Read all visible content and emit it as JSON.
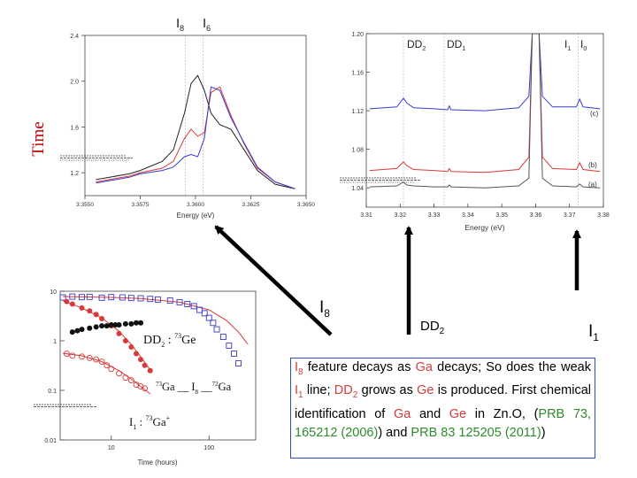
{
  "side_label": "Time",
  "callouts": {
    "i8": {
      "base": "I",
      "sub": "8"
    },
    "dd2": {
      "base": "DD",
      "sub": "2"
    },
    "i1": {
      "base": "I",
      "sub": "1"
    }
  },
  "caption": {
    "p1": "I",
    "p1_sub": "8",
    "p2": " feature decays as ",
    "p3": "Ga",
    "p4": " decays; So does the weak ",
    "p5": "I",
    "p5_sub": "1",
    "p6": " line; ",
    "p7": "DD",
    "p7_sub": "2",
    "p8": " grows as ",
    "p9": "Ge",
    "p10": " is produced. First chemical identification of ",
    "p11": "Ga",
    "p12": " and ",
    "p13": "Ge",
    "p14": " in Zn.O, (",
    "p15": "PRB 73, 165212 (2006)",
    "p16": ") and ",
    "p17": "PRB 83 125205 (2011)",
    "p18": ")"
  },
  "colors": {
    "red": "#d83a3a",
    "green": "#2e8b2e",
    "blue": "#3a3ad0",
    "arrow": "#000000"
  },
  "chart_data": [
    {
      "type": "line",
      "title": "",
      "xlabel": "Energy (eV)",
      "ylabel": "",
      "xlim": [
        3.355,
        3.365
      ],
      "ylim": [
        1.0,
        2.4
      ],
      "xticks": [
        "3.3550",
        "3.3575",
        "3.3600",
        "3.3625",
        "3.3650"
      ],
      "yticks": [
        "1.2",
        "1.6",
        "2.0",
        "2.4"
      ],
      "top_labels": [
        {
          "base": "I",
          "sub": "8"
        },
        {
          "base": "I",
          "sub": "6"
        }
      ],
      "series": [
        {
          "color": "#222222",
          "x": [
            3.3555,
            3.357,
            3.3575,
            3.3585,
            3.359,
            3.3595,
            3.3598,
            3.3601,
            3.3604,
            3.3607,
            3.3611,
            3.3616,
            3.3622,
            3.3628,
            3.3636,
            3.3645
          ],
          "y": [
            1.14,
            1.19,
            1.22,
            1.3,
            1.4,
            1.72,
            1.98,
            2.05,
            1.92,
            1.72,
            1.62,
            1.58,
            1.4,
            1.22,
            1.1,
            1.06
          ]
        },
        {
          "color": "#d83a3a",
          "x": [
            3.3555,
            3.357,
            3.3575,
            3.3585,
            3.359,
            3.3595,
            3.3598,
            3.3601,
            3.3604,
            3.3607,
            3.3611,
            3.3616,
            3.3622,
            3.3628,
            3.3636,
            3.3645
          ],
          "y": [
            1.12,
            1.17,
            1.2,
            1.24,
            1.3,
            1.5,
            1.58,
            1.52,
            1.55,
            1.9,
            1.95,
            1.7,
            1.45,
            1.24,
            1.12,
            1.06
          ]
        },
        {
          "color": "#3a3ad0",
          "x": [
            3.3555,
            3.357,
            3.3575,
            3.3585,
            3.359,
            3.3595,
            3.3598,
            3.3601,
            3.3604,
            3.3607,
            3.3611,
            3.3616,
            3.3622,
            3.3628,
            3.3636,
            3.3645
          ],
          "y": [
            1.11,
            1.16,
            1.19,
            1.22,
            1.25,
            1.34,
            1.36,
            1.34,
            1.5,
            1.95,
            1.92,
            1.68,
            1.46,
            1.25,
            1.12,
            1.06
          ]
        }
      ]
    },
    {
      "type": "line",
      "title": "",
      "xlabel": "Energy (eV)",
      "ylabel": "",
      "xlim": [
        3.31,
        3.38
      ],
      "ylim": [
        1.02,
        1.2
      ],
      "xticks": [
        "3.31",
        "3.32",
        "3.33",
        "3.34",
        "3.35",
        "3.36",
        "3.37",
        "3.38"
      ],
      "yticks": [
        "1.04",
        "1.08",
        "1.12",
        "1.16",
        "1.20"
      ],
      "top_labels": [
        {
          "base": "DD",
          "sub": "2"
        },
        {
          "base": "DD",
          "sub": "1"
        },
        {
          "base": "I",
          "sub": "1"
        },
        {
          "base": "I",
          "sub": "0"
        }
      ],
      "trace_labels": [
        "(c)",
        "(b)",
        "(a)"
      ],
      "series": [
        {
          "color": "#3a3ad0",
          "x": [
            3.311,
            3.319,
            3.321,
            3.322,
            3.324,
            3.33,
            3.334,
            3.3345,
            3.335,
            3.345,
            3.355,
            3.358,
            3.359,
            3.361,
            3.362,
            3.365,
            3.372,
            3.373,
            3.374,
            3.379
          ],
          "y": [
            1.122,
            1.124,
            1.133,
            1.128,
            1.123,
            1.122,
            1.121,
            1.125,
            1.121,
            1.12,
            1.123,
            1.135,
            1.2,
            1.2,
            1.135,
            1.124,
            1.124,
            1.132,
            1.124,
            1.122
          ]
        },
        {
          "color": "#d83a3a",
          "x": [
            3.311,
            3.319,
            3.321,
            3.322,
            3.324,
            3.33,
            3.334,
            3.3345,
            3.335,
            3.345,
            3.355,
            3.358,
            3.359,
            3.361,
            3.362,
            3.365,
            3.372,
            3.373,
            3.374,
            3.379
          ],
          "y": [
            1.058,
            1.06,
            1.067,
            1.063,
            1.059,
            1.058,
            1.057,
            1.06,
            1.057,
            1.056,
            1.059,
            1.072,
            1.2,
            1.2,
            1.072,
            1.06,
            1.059,
            1.066,
            1.059,
            1.057
          ]
        },
        {
          "color": "#555555",
          "x": [
            3.311,
            3.319,
            3.321,
            3.322,
            3.324,
            3.33,
            3.334,
            3.3345,
            3.335,
            3.345,
            3.355,
            3.358,
            3.359,
            3.361,
            3.362,
            3.365,
            3.372,
            3.373,
            3.374,
            3.379
          ],
          "y": [
            1.041,
            1.042,
            1.046,
            1.043,
            1.042,
            1.041,
            1.041,
            1.043,
            1.041,
            1.04,
            1.042,
            1.05,
            1.2,
            1.2,
            1.05,
            1.042,
            1.041,
            1.044,
            1.041,
            1.04
          ]
        }
      ]
    },
    {
      "type": "scatter",
      "title": "",
      "xlabel": "Time (hours)",
      "ylabel": "",
      "xscale": "log",
      "yscale": "log",
      "xlim": [
        3,
        300
      ],
      "ylim": [
        0.01,
        10
      ],
      "xticks": [
        "10",
        "100"
      ],
      "yticks": [
        "10",
        "1",
        "0.1",
        "0.01"
      ],
      "annotations": [
        {
          "parts": [
            {
              "t": "DD"
            },
            {
              "t": "2",
              "sub": true
            },
            {
              "t": " : "
            },
            {
              "t": "73",
              "sup": true
            },
            {
              "t": "Ge"
            }
          ]
        },
        {
          "parts": [
            {
              "t": "73",
              "sup": true
            },
            {
              "t": "Ga __ I"
            },
            {
              "t": "8",
              "sub": true
            },
            {
              "t": " __"
            },
            {
              "t": "72",
              "sup": true
            },
            {
              "t": "Ga"
            }
          ]
        },
        {
          "parts": [
            {
              "t": "I"
            },
            {
              "t": "1",
              "sub": true
            },
            {
              "t": " : "
            },
            {
              "t": "73",
              "sup": true
            },
            {
              "t": "Ga"
            },
            {
              "t": "+",
              "sup": true
            }
          ]
        }
      ],
      "series": [
        {
          "marker": "open-square",
          "color": "#3a3ad0",
          "x": [
            3.2,
            4,
            5,
            6,
            8,
            10,
            13,
            16,
            20,
            25,
            30,
            40,
            50,
            60,
            70,
            80,
            90,
            100,
            110,
            120,
            140,
            160,
            180,
            200
          ],
          "y": [
            7.5,
            7.8,
            7.6,
            7.7,
            7.4,
            7.6,
            7.5,
            7.3,
            7.2,
            7.0,
            6.8,
            6.5,
            6.0,
            5.5,
            5.0,
            4.2,
            3.6,
            2.9,
            2.3,
            1.7,
            1.2,
            0.8,
            0.55,
            0.35
          ]
        },
        {
          "marker": "filled-circle",
          "color": "#d83a3a",
          "x": [
            3.5,
            4,
            5,
            6,
            7,
            8,
            10,
            12,
            14,
            16,
            18,
            20,
            22,
            25
          ],
          "y": [
            6.2,
            5.5,
            4.6,
            4.0,
            3.4,
            2.8,
            2.0,
            1.4,
            1.0,
            0.75,
            0.55,
            0.42,
            0.32,
            0.25
          ]
        },
        {
          "marker": "filled-circle",
          "color": "#111111",
          "x": [
            4,
            4.5,
            5,
            6,
            7,
            8,
            9,
            10,
            11,
            12,
            14,
            16,
            18,
            20
          ],
          "y": [
            1.5,
            1.6,
            1.7,
            1.8,
            1.9,
            2.0,
            2.0,
            2.1,
            2.1,
            2.1,
            2.2,
            2.2,
            2.3,
            2.3
          ]
        },
        {
          "marker": "open-circle",
          "color": "#d83a3a",
          "x": [
            3.5,
            4,
            5,
            6,
            7,
            8,
            9,
            10,
            12,
            14,
            16,
            18,
            20,
            22
          ],
          "y": [
            0.55,
            0.5,
            0.48,
            0.45,
            0.42,
            0.38,
            0.32,
            0.27,
            0.22,
            0.18,
            0.16,
            0.13,
            0.12,
            0.11
          ]
        }
      ],
      "fit_curves": [
        {
          "color": "#d83a3a",
          "x": [
            3.2,
            5,
            10,
            20,
            50,
            100,
            150,
            200,
            250
          ],
          "y": [
            7.8,
            7.7,
            7.5,
            7.1,
            6.0,
            4.2,
            2.6,
            1.5,
            0.85
          ]
        },
        {
          "color": "#d83a3a",
          "x": [
            3.2,
            5,
            8,
            12,
            16,
            20,
            25
          ],
          "y": [
            6.5,
            4.6,
            2.9,
            1.55,
            0.85,
            0.48,
            0.26
          ]
        },
        {
          "color": "#d83a3a",
          "x": [
            3.2,
            5,
            8,
            12,
            16,
            20,
            25
          ],
          "y": [
            0.56,
            0.5,
            0.38,
            0.25,
            0.17,
            0.12,
            0.085
          ]
        }
      ]
    }
  ]
}
